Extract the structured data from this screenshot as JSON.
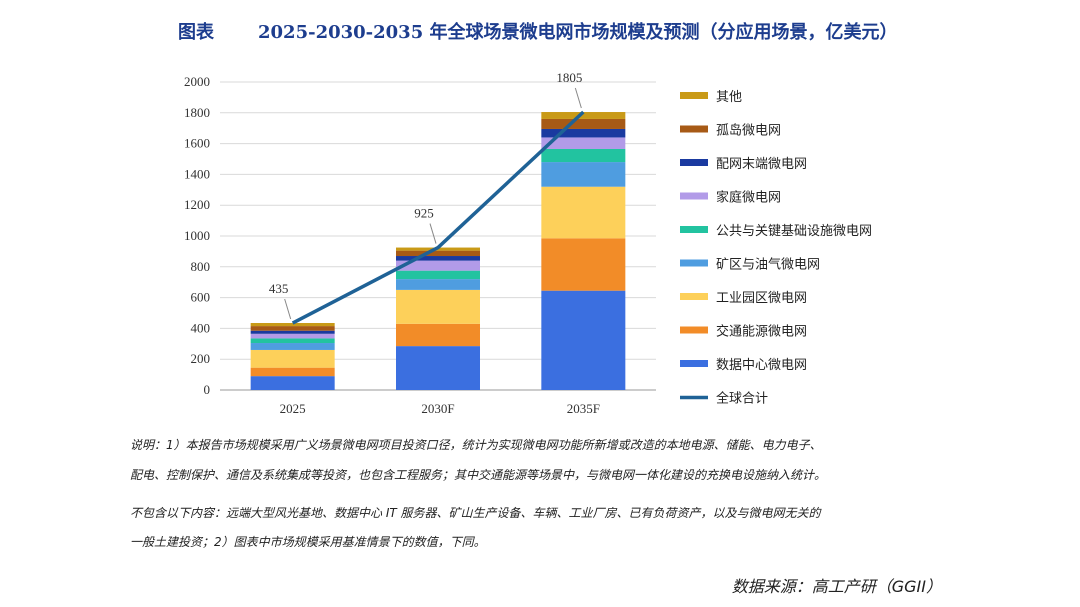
{
  "header": {
    "prefix": "图表",
    "title": "2025-2030-2035 年全球场景微电网市场规模及预测（分应用场景，亿美元）"
  },
  "chart_data": {
    "type": "bar",
    "stacked": true,
    "categories": [
      "2025",
      "2030F",
      "2035F"
    ],
    "ylim": [
      0,
      2000
    ],
    "yticks": [
      0,
      200,
      400,
      600,
      800,
      1000,
      1200,
      1400,
      1600,
      1800,
      2000
    ],
    "grid": true,
    "legend_position": "right",
    "series": [
      {
        "name": "数据中心微电网",
        "color": "#3b6fe0",
        "values": [
          90,
          285,
          645
        ]
      },
      {
        "name": "交通能源微电网",
        "color": "#f28c28",
        "values": [
          55,
          145,
          340
        ]
      },
      {
        "name": "工业园区微电网",
        "color": "#fdd05a",
        "values": [
          115,
          220,
          335
        ]
      },
      {
        "name": "矿区与油气微电网",
        "color": "#4f9de0",
        "values": [
          45,
          70,
          160
        ]
      },
      {
        "name": "公共与关键基础设施微电网",
        "color": "#22c3a0",
        "values": [
          30,
          55,
          85
        ]
      },
      {
        "name": "家庭微电网",
        "color": "#b29be8",
        "values": [
          30,
          65,
          75
        ]
      },
      {
        "name": "配网末端微电网",
        "color": "#1a3aa0",
        "values": [
          20,
          30,
          55
        ]
      },
      {
        "name": "孤岛微电网",
        "color": "#a75a16",
        "values": [
          30,
          35,
          65
        ]
      },
      {
        "name": "其他",
        "color": "#c99a17",
        "values": [
          20,
          20,
          45
        ]
      }
    ],
    "line": {
      "name": "全球合计",
      "color": "#1f6296",
      "values": [
        435,
        925,
        1805
      ]
    },
    "data_labels": [
      "435",
      "925",
      "1805"
    ]
  },
  "notes": [
    "说明：1）本报告市场规模采用广义场景微电网项目投资口径，统计为实现微电网功能所新增或改造的本地电源、储能、电力电子、",
    "配电、控制保护、通信及系统集成等投资，也包含工程服务；其中交通能源等场景中，与微电网一体化建设的充换电设施纳入统计。",
    "不包含以下内容：远端大型风光基地、数据中心 IT 服务器、矿山生产设备、车辆、工业厂房、已有负荷资产，以及与微电网无关的",
    "一般土建投资；2）图表中市场规模采用基准情景下的数值，下同。"
  ],
  "source": "数据来源：高工产研（GGII）"
}
